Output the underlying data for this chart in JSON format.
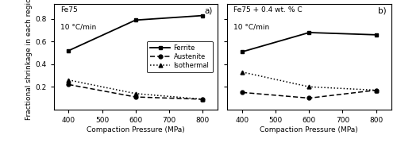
{
  "x": [
    400,
    600,
    800
  ],
  "panel_a": {
    "title": "Fe75",
    "subtitle": "10 °C/min",
    "label": "a)",
    "ferrite": [
      0.52,
      0.79,
      0.83
    ],
    "austenite": [
      0.22,
      0.11,
      0.09
    ],
    "isothermal": [
      0.26,
      0.14,
      0.09
    ]
  },
  "panel_b": {
    "title": "Fe75 + 0.4 wt. % C",
    "subtitle": "10 °C/min",
    "label": "b)",
    "ferrite": [
      0.51,
      0.68,
      0.66
    ],
    "austenite": [
      0.15,
      0.1,
      0.17
    ],
    "isothermal": [
      0.33,
      0.2,
      0.17
    ]
  },
  "xlabel": "Compaction Pressure (MPa)",
  "ylabel": "Fractional shrinkage in each region",
  "xlim": [
    355,
    845
  ],
  "ylim": [
    0.0,
    0.93
  ],
  "xticks": [
    400,
    500,
    600,
    700,
    800
  ],
  "yticks": [
    0.2,
    0.4,
    0.6,
    0.8
  ],
  "legend_labels": [
    "Ferrite",
    "Austenite",
    "Isothermal"
  ]
}
